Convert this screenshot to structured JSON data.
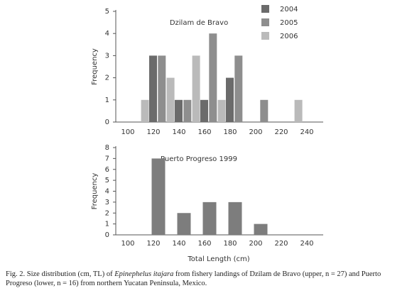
{
  "chart_data": [
    {
      "type": "bar",
      "title": "Dzilam de Bravo",
      "y_label": "Frequency",
      "categories": [
        "100",
        "120",
        "140",
        "160",
        "180",
        "200",
        "220",
        "240"
      ],
      "series": [
        {
          "name": "2004",
          "color": "#6b6b6b",
          "values": [
            0,
            3,
            1,
            1,
            2,
            0,
            0,
            0
          ]
        },
        {
          "name": "2005",
          "color": "#8e8e8e",
          "values": [
            0,
            3,
            1,
            4,
            3,
            1,
            0,
            0
          ]
        },
        {
          "name": "2006",
          "color": "#bababa",
          "values": [
            1,
            2,
            3,
            1,
            0,
            0,
            1,
            0
          ]
        }
      ],
      "ylim": [
        0,
        5
      ],
      "yticks": [
        0,
        1,
        2,
        3,
        4,
        5
      ],
      "legend": "top-right"
    },
    {
      "type": "bar",
      "title": "Puerto Progreso 1999",
      "y_label": "Frequency",
      "x_label": "Total Length (cm)",
      "categories": [
        "100",
        "120",
        "140",
        "160",
        "180",
        "200",
        "220",
        "240"
      ],
      "values": [
        0,
        7,
        2,
        3,
        3,
        1,
        0,
        0
      ],
      "color": "#7d7d7d",
      "ylim": [
        0,
        8
      ],
      "yticks": [
        0,
        1,
        2,
        3,
        4,
        5,
        6,
        7,
        8
      ]
    }
  ],
  "caption": {
    "prefix": "Fig. 2. Size distribution (cm, TL) of ",
    "italic": "Epinephelus itajara",
    "suffix": " from fishery landings of Dzilam de Bravo (upper, n = 27) and Puerto Progreso (lower, n = 16) from northern Yucatan Peninsula, Mexico."
  }
}
